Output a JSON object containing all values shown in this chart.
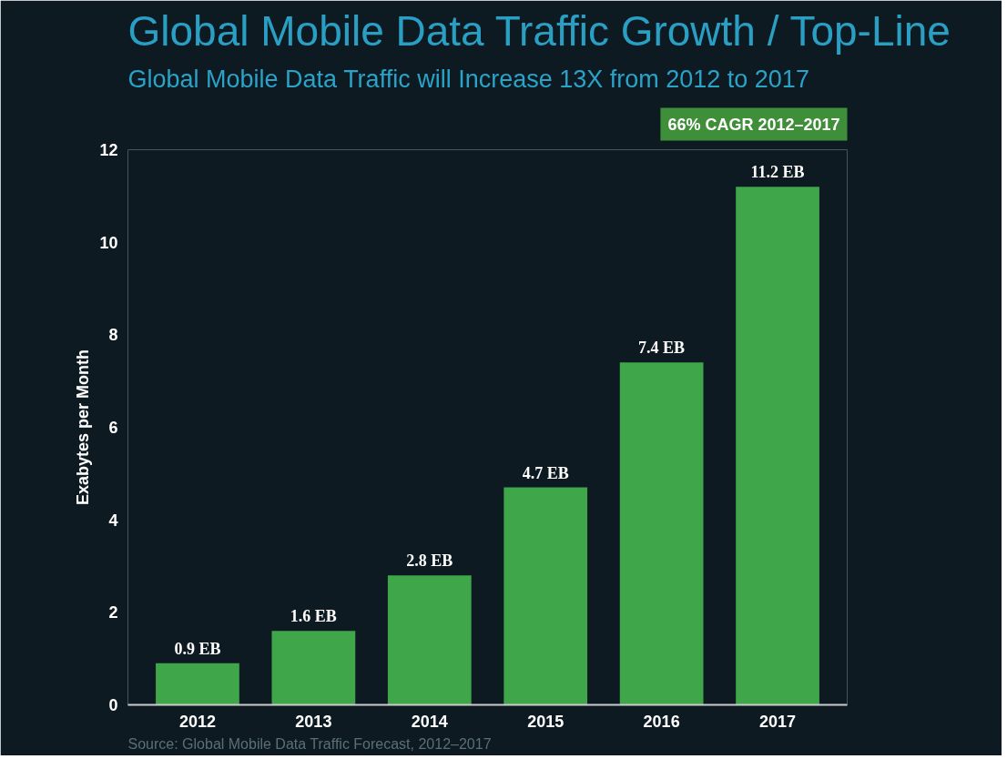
{
  "chart_data": {
    "type": "bar",
    "title": "Global Mobile Data Traffic Growth / Top-Line",
    "subtitle": "Global Mobile Data Traffic will Increase 13X from 2012 to 2017",
    "ylabel": "Exabytes per Month",
    "categories": [
      "2012",
      "2013",
      "2014",
      "2015",
      "2016",
      "2017"
    ],
    "values": [
      0.9,
      1.6,
      2.8,
      4.7,
      7.4,
      11.2
    ],
    "value_labels": [
      "0.9 EB",
      "1.6 EB",
      "2.8 EB",
      "4.7 EB",
      "7.4 EB",
      "11.2 EB"
    ],
    "color": "#3fa64a",
    "ylim": [
      0,
      12
    ],
    "yticks": [
      0,
      2,
      4,
      6,
      8,
      10,
      12
    ],
    "grid": false,
    "annotations": [
      "66% CAGR 2012–2017",
      "Source: Global Mobile Data Traffic Forecast, 2012–2017"
    ]
  }
}
